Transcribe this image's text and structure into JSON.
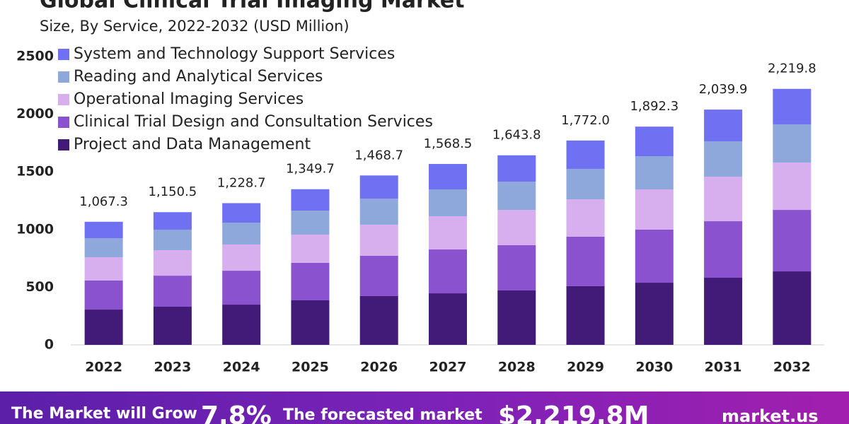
{
  "chart_data": {
    "type": "stacked_bar",
    "title": "Global Clinical Trial Imaging Market",
    "subtitle": "Size, By Service, 2022-2032 (USD Million)",
    "categories": [
      "2022",
      "2023",
      "2024",
      "2025",
      "2026",
      "2027",
      "2028",
      "2029",
      "2030",
      "2031",
      "2032"
    ],
    "series": [
      {
        "name": "System and Technology Support Services",
        "color": "#7070f2",
        "values": [
          142.3,
          151.5,
          168.7,
          185.7,
          201.7,
          220.5,
          228.8,
          246,
          256.3,
          274.9,
          307.8
        ]
      },
      {
        "name": "Reading and Analytical Services",
        "color": "#8fa8dc",
        "values": [
          165,
          178,
          190,
          208,
          225,
          233,
          245,
          264,
          288,
          307,
          331
        ]
      },
      {
        "name": "Operational Imaging Services",
        "color": "#d7afee",
        "values": [
          202,
          221,
          227,
          245,
          270,
          288,
          306,
          324,
          349,
          386,
          411
        ]
      },
      {
        "name": "Clinical Trial Design and Consultation Services",
        "color": "#8b52d0",
        "values": [
          252,
          269,
          294,
          325,
          349,
          380,
          392,
          429,
          460,
          490,
          533
        ]
      },
      {
        "name": "Project and Data Management",
        "color": "#421a78",
        "values": [
          306,
          331,
          349,
          386,
          423,
          447,
          472,
          509,
          539,
          582,
          637
        ]
      }
    ],
    "totals": {
      "values": [
        1067.3,
        1150.5,
        1228.7,
        1349.7,
        1468.7,
        1568.5,
        1643.8,
        1772.0,
        1892.3,
        2039.9,
        2219.8
      ],
      "value_labels": [
        "1,067.3",
        "1,150.5",
        "1,228.7",
        "1,349.7",
        "1,468.7",
        "1,568.5",
        "1,643.8",
        "1,772.0",
        "1,892.3",
        "2,039.9",
        "2,219.8"
      ]
    },
    "ylim": [
      0,
      2500
    ],
    "yticks": [
      0,
      500,
      1000,
      1500,
      2000,
      2500
    ],
    "grid": false,
    "legend": "top-left"
  },
  "banner": {
    "growth_text": "The Market will Grow",
    "cagr": "7.8%",
    "forecast_text": "The forecasted market",
    "value": "$2,219.8M",
    "brand": "market.us"
  }
}
